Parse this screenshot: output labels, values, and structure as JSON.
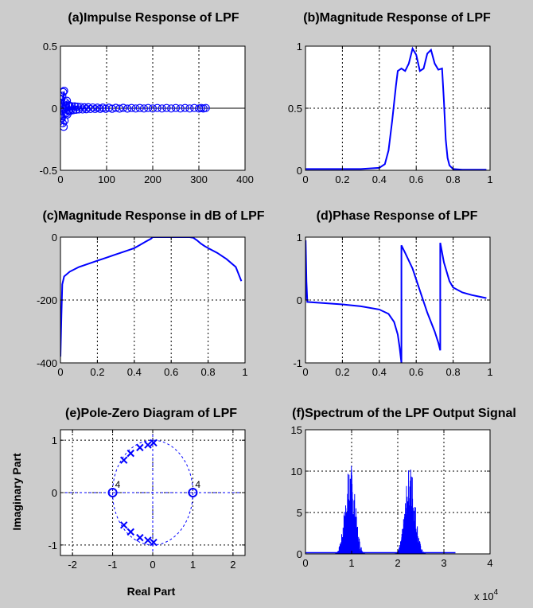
{
  "chart_data": [
    {
      "id": "a",
      "type": "scatter",
      "title": "(a)Impulse Response of LPF",
      "xlim": [
        0,
        400
      ],
      "ylim": [
        -0.5,
        0.5
      ],
      "xticks": [
        0,
        100,
        200,
        300,
        400
      ],
      "xtick_labels": [
        "0",
        "100",
        "200",
        "300",
        "400"
      ],
      "yticks": [
        -0.5,
        0,
        0.5
      ],
      "ytick_labels": [
        "-0.5",
        "0",
        "0.5"
      ],
      "grid": true,
      "marker": "o",
      "color": "#0000ff",
      "points": [
        [
          0,
          0.04
        ],
        [
          1,
          -0.05
        ],
        [
          2,
          0.07
        ],
        [
          3,
          -0.08
        ],
        [
          4,
          0.1
        ],
        [
          5,
          -0.12
        ],
        [
          6,
          0.13
        ],
        [
          7,
          -0.15
        ],
        [
          8,
          0.14
        ],
        [
          9,
          -0.1
        ],
        [
          10,
          0.05
        ],
        [
          11,
          -0.03
        ],
        [
          12,
          0.02
        ],
        [
          13,
          -0.04
        ],
        [
          14,
          0.06
        ],
        [
          15,
          -0.05
        ],
        [
          16,
          0.03
        ],
        [
          17,
          -0.02
        ],
        [
          18,
          0.02
        ],
        [
          19,
          -0.02
        ],
        [
          20,
          0.02
        ],
        [
          22,
          -0.02
        ],
        [
          25,
          0.015
        ],
        [
          28,
          -0.015
        ],
        [
          31,
          0.015
        ],
        [
          34,
          -0.012
        ],
        [
          37,
          0.012
        ],
        [
          40,
          -0.01
        ],
        [
          44,
          0.01
        ],
        [
          48,
          -0.01
        ],
        [
          52,
          0.008
        ],
        [
          56,
          -0.008
        ],
        [
          60,
          0.008
        ],
        [
          65,
          -0.006
        ],
        [
          70,
          0.006
        ],
        [
          75,
          -0.006
        ],
        [
          80,
          0.005
        ],
        [
          86,
          -0.005
        ],
        [
          92,
          0.005
        ],
        [
          98,
          -0.004
        ],
        [
          105,
          0.004
        ],
        [
          112,
          -0.004
        ],
        [
          120,
          0.003
        ],
        [
          128,
          -0.003
        ],
        [
          136,
          0.003
        ],
        [
          145,
          -0.003
        ],
        [
          154,
          0.002
        ],
        [
          163,
          -0.002
        ],
        [
          172,
          0.002
        ],
        [
          181,
          -0.002
        ],
        [
          190,
          0.002
        ],
        [
          200,
          -0.002
        ],
        [
          210,
          0.002
        ],
        [
          220,
          -0.002
        ],
        [
          230,
          0.002
        ],
        [
          240,
          -0.002
        ],
        [
          250,
          0.002
        ],
        [
          260,
          -0.002
        ],
        [
          270,
          0.002
        ],
        [
          280,
          -0.002
        ],
        [
          290,
          0.002
        ],
        [
          300,
          -0.002
        ],
        [
          305,
          0.002
        ],
        [
          310,
          -0.002
        ],
        [
          315,
          0.002
        ]
      ]
    },
    {
      "id": "b",
      "type": "line",
      "title": "(b)Magnitude Response of LPF",
      "xlim": [
        0,
        1
      ],
      "ylim": [
        0,
        1
      ],
      "xticks": [
        0,
        0.2,
        0.4,
        0.6,
        0.8,
        1
      ],
      "xtick_labels": [
        "0",
        "0.2",
        "0.4",
        "0.6",
        "0.8",
        "1"
      ],
      "yticks": [
        0,
        0.5,
        1
      ],
      "ytick_labels": [
        "0",
        "0.5",
        "1"
      ],
      "grid": true,
      "color": "#0000ff",
      "x": [
        0,
        0.1,
        0.2,
        0.3,
        0.4,
        0.43,
        0.45,
        0.47,
        0.49,
        0.5,
        0.52,
        0.54,
        0.56,
        0.58,
        0.6,
        0.62,
        0.64,
        0.66,
        0.68,
        0.7,
        0.72,
        0.74,
        0.75,
        0.76,
        0.77,
        0.78,
        0.8,
        0.85,
        0.9,
        0.95,
        0.98
      ],
      "y": [
        0.01,
        0.01,
        0.01,
        0.01,
        0.02,
        0.05,
        0.16,
        0.4,
        0.68,
        0.8,
        0.82,
        0.8,
        0.86,
        0.98,
        0.93,
        0.8,
        0.82,
        0.94,
        0.97,
        0.86,
        0.81,
        0.82,
        0.56,
        0.25,
        0.1,
        0.04,
        0.01,
        0.005,
        0.005,
        0.005,
        0.005
      ]
    },
    {
      "id": "c",
      "type": "line",
      "title": "(c)Magnitude Response in dB of LPF",
      "xlim": [
        0,
        1
      ],
      "ylim": [
        -400,
        0
      ],
      "xticks": [
        0,
        0.2,
        0.4,
        0.6,
        0.8,
        1
      ],
      "xtick_labels": [
        "0",
        "0.2",
        "0.4",
        "0.6",
        "0.8",
        "1"
      ],
      "yticks": [
        -400,
        -200,
        0
      ],
      "ytick_labels": [
        "-400",
        "-200",
        "0"
      ],
      "grid": true,
      "color": "#0000ff",
      "x": [
        0.0,
        0.005,
        0.01,
        0.02,
        0.05,
        0.1,
        0.15,
        0.2,
        0.25,
        0.3,
        0.35,
        0.4,
        0.43,
        0.46,
        0.49,
        0.5,
        0.55,
        0.6,
        0.65,
        0.7,
        0.72,
        0.74,
        0.76,
        0.78,
        0.8,
        0.85,
        0.9,
        0.95,
        0.98
      ],
      "y": [
        -380,
        -250,
        -150,
        -125,
        -110,
        -95,
        -85,
        -75,
        -65,
        -55,
        -45,
        -35,
        -25,
        -15,
        -5,
        0,
        0,
        0,
        0,
        0,
        -2,
        -10,
        -20,
        -28,
        -35,
        -50,
        -70,
        -95,
        -140
      ]
    },
    {
      "id": "d",
      "type": "line",
      "title": "(d)Phase Response of LPF",
      "xlim": [
        0,
        1
      ],
      "ylim": [
        -1,
        1
      ],
      "xticks": [
        0,
        0.2,
        0.4,
        0.6,
        0.8,
        1
      ],
      "xtick_labels": [
        "0",
        "0.2",
        "0.4",
        "0.6",
        "0.8",
        "1"
      ],
      "yticks": [
        -1,
        0,
        1
      ],
      "ytick_labels": [
        "-1",
        "0",
        "1"
      ],
      "grid": true,
      "color": "#0000ff",
      "x": [
        0,
        0.001,
        0.005,
        0.01,
        0.1,
        0.2,
        0.3,
        0.4,
        0.45,
        0.48,
        0.5,
        0.51,
        0.52,
        0.52,
        0.54,
        0.58,
        0.62,
        0.66,
        0.7,
        0.72,
        0.73,
        0.73,
        0.75,
        0.78,
        0.8,
        0.85,
        0.9,
        0.95,
        0.98
      ],
      "y": [
        0,
        0.95,
        0.3,
        -0.03,
        -0.05,
        -0.07,
        -0.1,
        -0.15,
        -0.22,
        -0.35,
        -0.55,
        -0.75,
        -1.0,
        0.87,
        0.75,
        0.5,
        0.15,
        -0.2,
        -0.5,
        -0.68,
        -0.8,
        0.91,
        0.6,
        0.3,
        0.2,
        0.12,
        0.08,
        0.05,
        0.03
      ]
    },
    {
      "id": "e",
      "type": "scatter",
      "title": "(e)Pole-Zero Diagram of LPF",
      "xlabel": "Real Part",
      "ylabel": "Imaginary Part",
      "xlim": [
        -2.3,
        2.3
      ],
      "ylim": [
        -1.2,
        1.2
      ],
      "xticks": [
        -2,
        -1,
        0,
        1,
        2
      ],
      "xtick_labels": [
        "-2",
        "-1",
        "0",
        "1",
        "2"
      ],
      "yticks": [
        -1,
        0,
        1
      ],
      "ytick_labels": [
        "-1",
        "0",
        "1"
      ],
      "grid": true,
      "color": "#0000ff",
      "zeros": [
        [
          -1,
          0
        ],
        [
          1,
          0
        ]
      ],
      "zero_multiplicity_labels": [
        "4",
        "4"
      ],
      "poles": [
        [
          -0.72,
          0.62
        ],
        [
          -0.55,
          0.75
        ],
        [
          -0.32,
          0.86
        ],
        [
          -0.12,
          0.91
        ],
        [
          0.02,
          0.95
        ],
        [
          -0.72,
          -0.62
        ],
        [
          -0.55,
          -0.75
        ],
        [
          -0.32,
          -0.86
        ],
        [
          -0.12,
          -0.91
        ],
        [
          0.02,
          -0.95
        ]
      ]
    },
    {
      "id": "f",
      "type": "area",
      "title": "(f)Spectrum of the LPF Output Signal",
      "xlim": [
        0,
        4
      ],
      "ylim": [
        0,
        15
      ],
      "xticks": [
        0,
        1,
        2,
        3,
        4
      ],
      "xtick_labels": [
        "0",
        "1",
        "2",
        "3",
        "4"
      ],
      "yticks": [
        0,
        5,
        10,
        15
      ],
      "ytick_labels": [
        "0",
        "5",
        "10",
        "15"
      ],
      "x_multiplier_label": "x 10",
      "x_multiplier_exponent": "4",
      "grid": true,
      "color": "#0000ff",
      "lobes": [
        {
          "center": 0.97,
          "halfwidth": 0.35,
          "peak": 11.2
        },
        {
          "center": 2.27,
          "halfwidth": 0.35,
          "peak": 11.0
        }
      ]
    }
  ]
}
